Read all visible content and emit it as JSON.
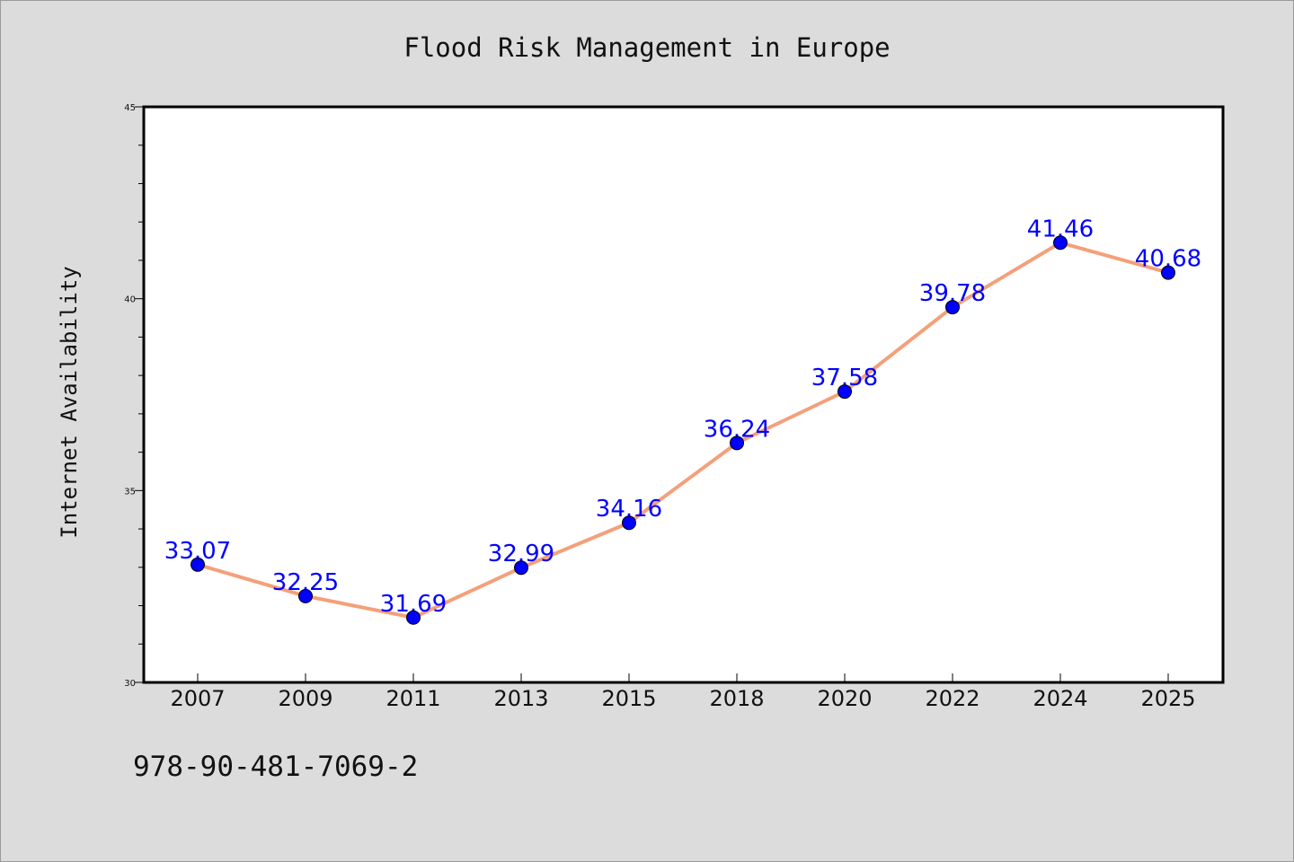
{
  "chart_data": {
    "type": "line",
    "title": "Flood Risk Management in Europe",
    "ylabel": "Internet Availability",
    "xlabel": "",
    "categories": [
      "2007",
      "2009",
      "2011",
      "2013",
      "2015",
      "2018",
      "2020",
      "2022",
      "2024",
      "2025"
    ],
    "values": [
      33.07,
      32.25,
      31.69,
      32.99,
      34.16,
      36.24,
      37.58,
      39.78,
      41.46,
      40.68
    ],
    "data_labels": [
      "33.07",
      "32.25",
      "31.69",
      "32.99",
      "34.16",
      "36.24",
      "37.58",
      "39.78",
      "41.46",
      "40.68"
    ],
    "ylim": [
      30,
      45
    ],
    "yticks": [
      30,
      35,
      40,
      45
    ],
    "ytick_labels": [
      "30",
      "35",
      "40",
      "45"
    ],
    "yminor_step": 1,
    "grid": false,
    "line_color": "#f4a07a",
    "marker_color": "#0000ff",
    "label_color": "#0000ff"
  },
  "footer": {
    "text": "978-90-481-7069-2"
  }
}
